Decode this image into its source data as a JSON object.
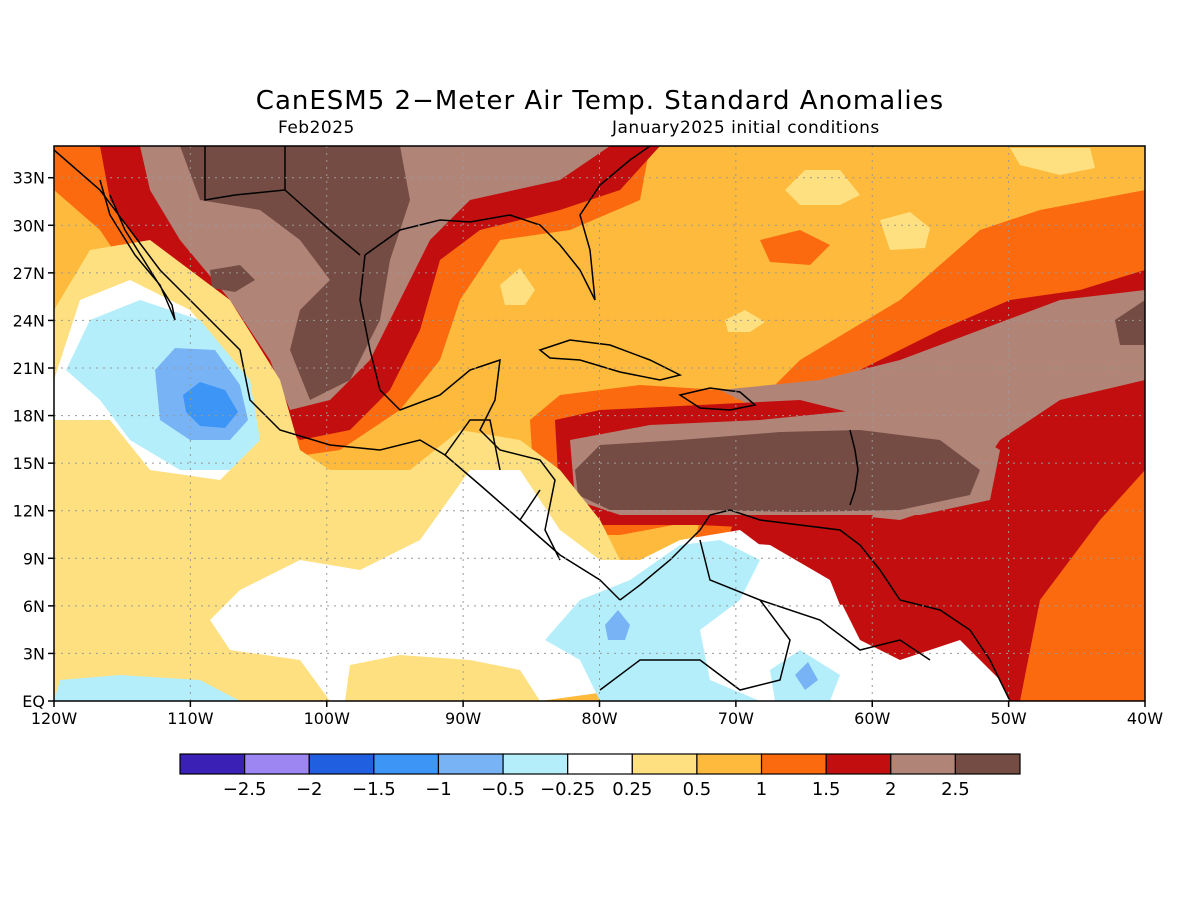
{
  "header": {
    "title": "CanESM5 2−Meter Air Temp. Standard Anomalies",
    "valid_month": "Feb2025",
    "init_label": "January2025 initial conditions"
  },
  "map": {
    "lon_range": [
      -120,
      -40
    ],
    "lat_range": [
      0,
      35
    ],
    "lon_ticks": [
      {
        "value": -120,
        "label": "120W"
      },
      {
        "value": -110,
        "label": "110W"
      },
      {
        "value": -100,
        "label": "100W"
      },
      {
        "value": -90,
        "label": "90W"
      },
      {
        "value": -80,
        "label": "80W"
      },
      {
        "value": -70,
        "label": "70W"
      },
      {
        "value": -60,
        "label": "60W"
      },
      {
        "value": -50,
        "label": "50W"
      },
      {
        "value": -40,
        "label": "40W"
      }
    ],
    "lat_ticks": [
      {
        "value": 0,
        "label": "EQ"
      },
      {
        "value": 3,
        "label": "3N"
      },
      {
        "value": 6,
        "label": "6N"
      },
      {
        "value": 9,
        "label": "9N"
      },
      {
        "value": 12,
        "label": "12N"
      },
      {
        "value": 15,
        "label": "15N"
      },
      {
        "value": 18,
        "label": "18N"
      },
      {
        "value": 21,
        "label": "21N"
      },
      {
        "value": 24,
        "label": "24N"
      },
      {
        "value": 27,
        "label": "27N"
      },
      {
        "value": 30,
        "label": "30N"
      },
      {
        "value": 33,
        "label": "33N"
      }
    ],
    "grid": true
  },
  "colorbar": {
    "colors": [
      "#3a20b4",
      "#9d85f2",
      "#1f5fe0",
      "#3d95f5",
      "#78b4f5",
      "#b4eefa",
      "#ffffff",
      "#fee080",
      "#fdba3c",
      "#fc6a0f",
      "#c20e0e",
      "#b08578",
      "#744c43"
    ],
    "labels": [
      "−2.5",
      "−2",
      "−1.5",
      "−1",
      "−0.5",
      "−0.25",
      "0.25",
      "0.5",
      "1",
      "1.5",
      "2",
      "2.5"
    ]
  }
}
